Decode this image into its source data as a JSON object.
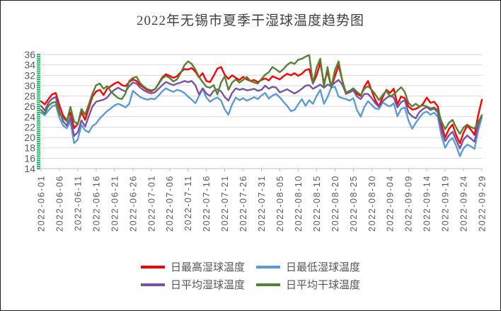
{
  "chart_data": {
    "type": "line",
    "title": "2022年无锡市夏季干湿球温度趋势图",
    "xlabel": "",
    "ylabel": "",
    "x_start": "2022-06-01",
    "x_end": "2022-09-29",
    "n_points": 121,
    "x_tick_interval_days": 5,
    "x_tick_labels": [
      "2022-06-01",
      "2022-06-06",
      "2022-06-11",
      "2022-06-16",
      "2022-06-21",
      "2022-06-26",
      "2022-07-01",
      "2022-07-06",
      "2022-07-11",
      "2022-07-16",
      "2022-07-21",
      "2022-07-26",
      "2022-07-31",
      "2022-08-05",
      "2022-08-10",
      "2022-08-15",
      "2022-08-20",
      "2022-08-25",
      "2022-08-30",
      "2022-09-04",
      "2022-09-09",
      "2022-09-14",
      "2022-09-19",
      "2022-09-24",
      "2022-09-29"
    ],
    "ylim": [
      14,
      36
    ],
    "yticks": [
      36,
      34,
      32,
      30,
      28,
      26,
      24,
      22,
      20,
      18,
      16,
      14
    ],
    "grid": "horizontal",
    "legend_position": "bottom",
    "colors": {
      "gridline": "#D9D9D9",
      "axis_line": "#BFBFBF",
      "axis_minor_tick_green": "#00B050",
      "tick_label": "#595959",
      "title_text": "#3F3F3F"
    },
    "series": [
      {
        "name": "日最高湿球温度",
        "color": "#FF0000",
        "values": [
          27.0,
          26.4,
          27.4,
          28.3,
          28.6,
          26.2,
          24.2,
          23.3,
          24.8,
          21.8,
          22.6,
          24.9,
          23.4,
          25.7,
          27.9,
          28.9,
          29.2,
          28.2,
          29.4,
          29.9,
          30.4,
          30.7,
          30.1,
          29.9,
          30.7,
          31.2,
          30.9,
          30.1,
          29.6,
          29.1,
          28.9,
          29.3,
          30.4,
          31.6,
          32.2,
          31.9,
          31.5,
          31.8,
          32.6,
          33.2,
          33.1,
          33.4,
          32.7,
          31.6,
          32.4,
          30.9,
          30.7,
          31.9,
          33.3,
          33.6,
          32.1,
          31.3,
          32.0,
          31.5,
          31.1,
          31.7,
          31.2,
          30.9,
          31.1,
          30.7,
          31.1,
          31.4,
          31.0,
          31.8,
          31.5,
          31.2,
          31.8,
          32.3,
          32.0,
          32.4,
          31.9,
          32.3,
          33.0,
          33.2,
          30.4,
          32.0,
          34.4,
          30.5,
          32.7,
          29.7,
          31.8,
          33.9,
          31.0,
          28.4,
          28.8,
          29.3,
          28.4,
          28.0,
          29.8,
          30.9,
          29.0,
          27.2,
          26.0,
          27.8,
          29.2,
          28.6,
          29.4,
          26.4,
          27.9,
          27.6,
          26.0,
          25.4,
          25.5,
          25.9,
          26.5,
          27.7,
          26.7,
          26.9,
          26.0,
          22.4,
          20.0,
          21.6,
          22.5,
          20.4,
          18.9,
          20.9,
          22.3,
          21.5,
          20.5,
          24.3,
          27.3
        ]
      },
      {
        "name": "日最低湿球温度",
        "color": "#5B9BD5",
        "values": [
          24.8,
          24.3,
          25.2,
          26.0,
          26.3,
          23.8,
          22.3,
          21.8,
          23.1,
          18.9,
          19.6,
          22.4,
          21.4,
          21.0,
          22.2,
          22.7,
          23.7,
          24.4,
          25.1,
          25.6,
          26.2,
          26.5,
          26.2,
          25.8,
          26.5,
          29.0,
          28.4,
          27.8,
          27.5,
          27.3,
          27.5,
          27.4,
          28.1,
          28.9,
          29.5,
          29.1,
          28.8,
          29.2,
          29.0,
          28.6,
          27.9,
          27.3,
          26.6,
          28.0,
          29.4,
          27.7,
          26.9,
          27.4,
          27.7,
          27.1,
          25.4,
          24.4,
          26.4,
          27.7,
          27.2,
          27.6,
          27.1,
          27.4,
          27.8,
          27.4,
          28.1,
          28.6,
          27.5,
          28.1,
          28.4,
          27.7,
          26.9,
          26.1,
          25.1,
          25.3,
          26.4,
          27.4,
          26.1,
          27.2,
          26.5,
          28.0,
          29.2,
          26.5,
          27.8,
          29.6,
          29.8,
          27.9,
          27.6,
          27.4,
          27.1,
          27.6,
          25.3,
          24.0,
          25.9,
          27.0,
          26.3,
          25.6,
          25.5,
          26.8,
          26.3,
          26.0,
          26.6,
          24.1,
          25.5,
          25.8,
          23.3,
          21.7,
          22.8,
          23.8,
          24.7,
          25.0,
          24.4,
          24.8,
          24.0,
          20.3,
          18.0,
          19.3,
          19.9,
          18.4,
          16.4,
          17.9,
          18.6,
          18.3,
          17.8,
          21.4,
          23.9
        ]
      },
      {
        "name": "日平均湿球温度",
        "color": "#7A52A3",
        "values": [
          26.1,
          25.2,
          26.7,
          27.5,
          27.8,
          25.1,
          23.1,
          22.3,
          23.9,
          20.3,
          21.0,
          23.3,
          22.1,
          24.1,
          26.0,
          26.9,
          27.1,
          27.3,
          27.7,
          28.6,
          29.2,
          29.6,
          29.2,
          28.9,
          29.9,
          30.6,
          30.4,
          29.6,
          29.1,
          28.7,
          28.5,
          28.7,
          29.4,
          30.1,
          30.7,
          30.4,
          30.1,
          30.4,
          30.6,
          30.9,
          30.7,
          30.9,
          30.1,
          28.3,
          29.5,
          28.5,
          28.0,
          29.0,
          29.3,
          28.9,
          27.8,
          27.1,
          28.6,
          29.5,
          29.2,
          29.4,
          29.1,
          29.2,
          29.4,
          29.0,
          29.2,
          30.0,
          29.4,
          29.8,
          29.6,
          28.7,
          29.0,
          29.3,
          28.9,
          28.5,
          28.9,
          29.4,
          30.0,
          30.1,
          29.4,
          29.8,
          30.2,
          29.6,
          30.2,
          29.9,
          30.6,
          31.1,
          30.2,
          28.5,
          28.7,
          29.1,
          27.9,
          27.4,
          28.4,
          28.4,
          27.6,
          26.6,
          25.9,
          27.0,
          27.6,
          28.1,
          27.7,
          25.8,
          26.8,
          27.2,
          24.8,
          24.1,
          23.7,
          24.9,
          25.5,
          25.9,
          25.3,
          25.6,
          24.8,
          21.4,
          19.3,
          20.4,
          21.1,
          19.5,
          17.9,
          19.6,
          20.4,
          19.8,
          19.2,
          22.5,
          24.3
        ]
      },
      {
        "name": "日平均干球温度",
        "color": "#548235",
        "values": [
          25.3,
          24.6,
          26.1,
          26.7,
          26.9,
          24.5,
          23.8,
          23.1,
          25.9,
          23.1,
          22.6,
          25.5,
          24.4,
          26.4,
          28.5,
          30.1,
          30.4,
          29.4,
          29.9,
          28.9,
          28.2,
          27.6,
          27.4,
          28.5,
          30.9,
          31.5,
          31.7,
          30.5,
          29.8,
          29.3,
          29.1,
          29.3,
          30.3,
          31.4,
          31.9,
          31.5,
          30.8,
          31.2,
          32.4,
          33.9,
          34.7,
          34.2,
          33.1,
          31.7,
          30.7,
          29.8,
          29.6,
          30.1,
          28.3,
          30.6,
          31.8,
          29.2,
          30.6,
          31.2,
          30.6,
          31.1,
          31.7,
          30.9,
          30.6,
          30.4,
          31.3,
          32.1,
          32.6,
          33.6,
          33.1,
          32.6,
          33.2,
          34.0,
          34.5,
          34.2,
          35.0,
          35.2,
          35.6,
          35.9,
          30.4,
          33.5,
          35.2,
          29.8,
          33.6,
          29.6,
          33.0,
          34.7,
          31.0,
          28.7,
          29.0,
          29.5,
          28.8,
          28.2,
          29.4,
          29.9,
          29.2,
          28.3,
          27.2,
          28.2,
          29.0,
          27.9,
          28.3,
          29.0,
          29.7,
          28.8,
          26.7,
          26.0,
          26.5,
          26.0,
          26.2,
          26.0,
          25.6,
          25.8,
          25.3,
          23.1,
          21.6,
          22.8,
          23.4,
          21.9,
          20.7,
          21.9,
          22.5,
          22.0,
          21.7,
          22.9,
          24.3
        ]
      }
    ]
  }
}
